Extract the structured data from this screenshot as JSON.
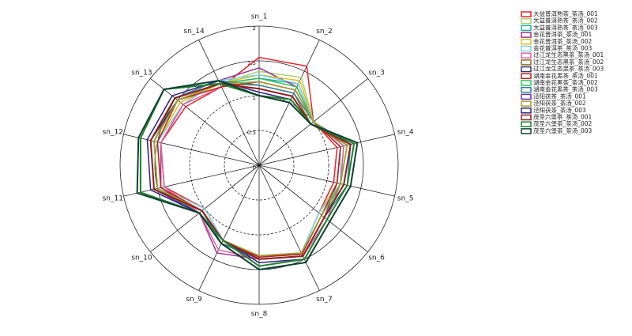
{
  "chart_data": {
    "type": "radar",
    "categories": [
      "sn_1",
      "sn_2",
      "sn_3",
      "sn_4",
      "sn_5",
      "sn_6",
      "sn_7",
      "sn_8",
      "sn_9",
      "sn_10",
      "sn_11",
      "sn_12",
      "sn_13",
      "sn_14"
    ],
    "rlim": [
      0,
      2
    ],
    "rticks": [
      0,
      0.5,
      1,
      1.5,
      2
    ],
    "series": [
      {
        "name": "大益普洱熟茶_茶汤_001",
        "color": "#e8222a",
        "values": [
          1.55,
          1.58,
          1.0,
          1.15,
          1.1,
          1.1,
          1.4,
          1.3,
          1.2,
          1.0,
          1.4,
          1.45,
          1.35,
          1.25
        ]
      },
      {
        "name": "大益普洱熟茶_茶汤_002",
        "color": "#a8d070",
        "values": [
          1.35,
          1.4,
          1.0,
          1.2,
          1.15,
          1.1,
          1.4,
          1.3,
          1.25,
          1.05,
          1.45,
          1.5,
          1.45,
          1.3
        ]
      },
      {
        "name": "大益普洱熟茶_茶汤_003",
        "color": "#20b0a0",
        "values": [
          1.25,
          1.3,
          1.0,
          1.25,
          1.2,
          1.15,
          1.42,
          1.32,
          1.2,
          1.05,
          1.5,
          1.55,
          1.5,
          1.3
        ]
      },
      {
        "name": "金花普洱茶_茶汤_001",
        "color": "#a03090",
        "values": [
          1.4,
          1.25,
          1.0,
          1.2,
          1.15,
          1.2,
          1.45,
          1.35,
          1.4,
          1.1,
          1.45,
          1.45,
          1.4,
          1.35
        ]
      },
      {
        "name": "金花普洱茶_茶汤_002",
        "color": "#e0c020",
        "values": [
          1.3,
          1.35,
          1.0,
          1.25,
          1.2,
          1.15,
          1.42,
          1.3,
          1.2,
          1.05,
          1.45,
          1.5,
          1.45,
          1.3
        ]
      },
      {
        "name": "金花普洱茶_茶汤_003",
        "color": "#80d0e0",
        "values": [
          1.3,
          1.3,
          1.0,
          1.2,
          1.2,
          1.1,
          1.4,
          1.3,
          1.2,
          1.0,
          1.45,
          1.5,
          1.4,
          1.35
        ]
      },
      {
        "name": "过江龙生态黑茶_茶汤_001",
        "color": "#e060a0",
        "values": [
          1.2,
          1.2,
          1.0,
          1.25,
          1.2,
          1.25,
          1.45,
          1.35,
          1.35,
          1.1,
          1.4,
          1.45,
          1.4,
          1.25
        ]
      },
      {
        "name": "过江龙生态黑茶_茶汤_002",
        "color": "#8a7020",
        "values": [
          1.15,
          1.15,
          0.95,
          1.3,
          1.2,
          1.15,
          1.42,
          1.3,
          1.25,
          1.05,
          1.5,
          1.55,
          1.55,
          1.3
        ]
      },
      {
        "name": "过江龙生态黑茶_茶汤_003",
        "color": "#303080",
        "values": [
          1.1,
          1.1,
          0.95,
          1.35,
          1.25,
          1.2,
          1.45,
          1.35,
          1.2,
          1.05,
          1.55,
          1.6,
          1.5,
          1.3
        ]
      },
      {
        "name": "湖南金花黑茶_茶汤_001",
        "color": "#c02020",
        "values": [
          1.2,
          1.2,
          1.0,
          1.2,
          1.15,
          1.15,
          1.42,
          1.32,
          1.2,
          1.05,
          1.45,
          1.5,
          1.5,
          1.25
        ]
      },
      {
        "name": "湖南金花黑茶_茶汤_002",
        "color": "#30c060",
        "values": [
          1.25,
          1.25,
          1.0,
          1.3,
          1.2,
          1.2,
          1.45,
          1.35,
          1.2,
          1.1,
          1.5,
          1.55,
          1.5,
          1.3
        ]
      },
      {
        "name": "湖南金花黑茶_茶汤_003",
        "color": "#3080a0",
        "values": [
          1.15,
          1.15,
          1.0,
          1.35,
          1.3,
          1.2,
          1.45,
          1.35,
          1.25,
          1.05,
          1.55,
          1.6,
          1.55,
          1.35
        ]
      },
      {
        "name": "泾阳茯茶_茶汤_001",
        "color": "#7030a0",
        "values": [
          1.1,
          1.1,
          0.95,
          1.35,
          1.25,
          1.2,
          1.45,
          1.35,
          1.2,
          1.1,
          1.55,
          1.6,
          1.55,
          1.3
        ]
      },
      {
        "name": "泾阳茯茶_茶汤_002",
        "color": "#a0a030",
        "values": [
          1.2,
          1.2,
          1.0,
          1.3,
          1.2,
          1.15,
          1.4,
          1.3,
          1.2,
          1.05,
          1.5,
          1.55,
          1.5,
          1.3
        ]
      },
      {
        "name": "泾阳茯茶_茶汤_003",
        "color": "#302080",
        "values": [
          1.05,
          1.05,
          0.95,
          1.4,
          1.3,
          1.25,
          1.5,
          1.4,
          1.2,
          1.1,
          1.6,
          1.65,
          1.6,
          1.35
        ]
      },
      {
        "name": "茂圣六堡茶_茶汤_001",
        "color": "#902020",
        "values": [
          1.1,
          1.1,
          0.95,
          1.35,
          1.25,
          1.2,
          1.45,
          1.35,
          1.2,
          1.05,
          1.55,
          1.6,
          1.55,
          1.3
        ]
      },
      {
        "name": "茂圣六堡茶_茶汤_002",
        "color": "#208030",
        "values": [
          1.0,
          1.05,
          0.95,
          1.4,
          1.3,
          1.25,
          1.5,
          1.45,
          1.2,
          1.1,
          1.75,
          1.75,
          1.75,
          1.3
        ]
      },
      {
        "name": "茂圣六堡茶_茶汤_003",
        "color": "#104030",
        "values": [
          1.0,
          1.0,
          0.95,
          1.45,
          1.35,
          1.3,
          1.55,
          1.5,
          1.25,
          1.1,
          1.8,
          1.78,
          1.75,
          1.35
        ]
      }
    ]
  }
}
